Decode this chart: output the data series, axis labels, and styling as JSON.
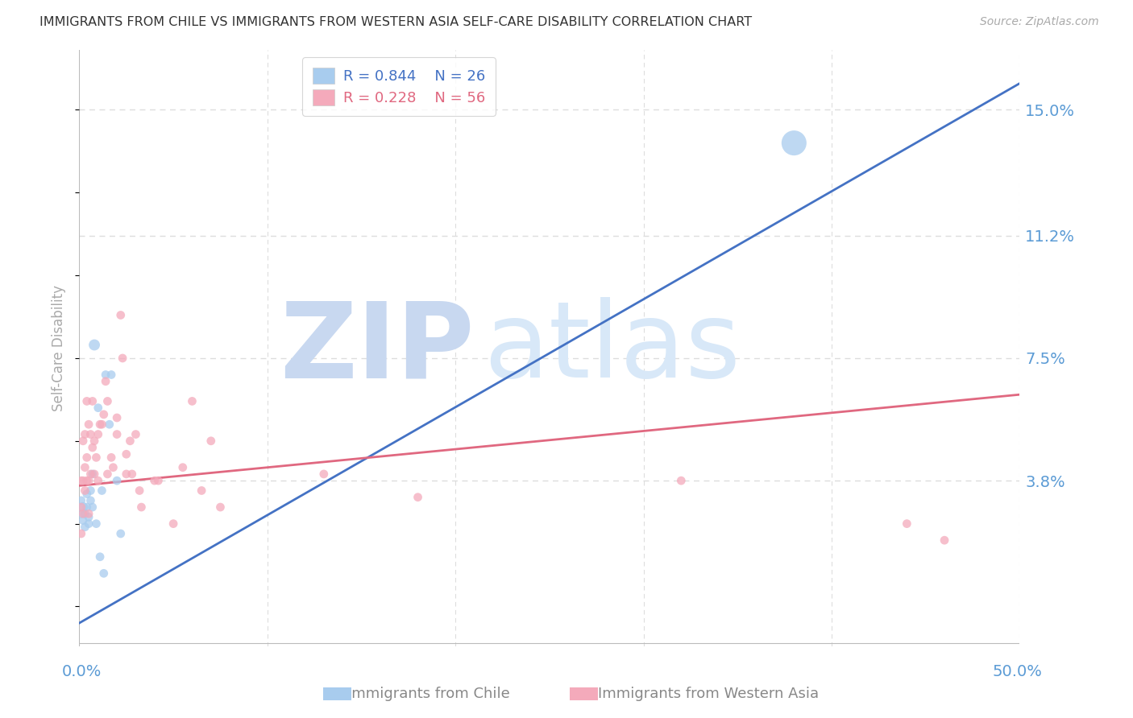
{
  "title": "IMMIGRANTS FROM CHILE VS IMMIGRANTS FROM WESTERN ASIA SELF-CARE DISABILITY CORRELATION CHART",
  "source": "Source: ZipAtlas.com",
  "ylabel": "Self-Care Disability",
  "yticks": [
    0.038,
    0.075,
    0.112,
    0.15
  ],
  "ytick_labels": [
    "3.8%",
    "7.5%",
    "11.2%",
    "15.0%"
  ],
  "xlim": [
    0.0,
    0.5
  ],
  "ylim": [
    -0.012,
    0.168
  ],
  "chile_R": 0.844,
  "chile_N": 26,
  "western_asia_R": 0.228,
  "western_asia_N": 56,
  "chile_dot_color": "#A8CCEE",
  "western_asia_dot_color": "#F4AABB",
  "chile_line_color": "#4472C4",
  "western_asia_line_color": "#E06880",
  "background_color": "#FFFFFF",
  "grid_color": "#DDDDDD",
  "axis_label_color": "#5B9BD5",
  "title_color": "#333333",
  "zip_watermark_color": "#C8D8F0",
  "atlas_watermark_color": "#D8E8F8",
  "chile_scatter_x": [
    0.001,
    0.001,
    0.002,
    0.002,
    0.003,
    0.003,
    0.004,
    0.004,
    0.005,
    0.005,
    0.006,
    0.006,
    0.007,
    0.007,
    0.008,
    0.009,
    0.01,
    0.011,
    0.012,
    0.013,
    0.014,
    0.016,
    0.017,
    0.02,
    0.022,
    0.38
  ],
  "chile_scatter_y": [
    0.028,
    0.032,
    0.026,
    0.03,
    0.024,
    0.028,
    0.03,
    0.034,
    0.025,
    0.027,
    0.032,
    0.035,
    0.03,
    0.04,
    0.079,
    0.025,
    0.06,
    0.015,
    0.035,
    0.01,
    0.07,
    0.055,
    0.07,
    0.038,
    0.022,
    0.14
  ],
  "chile_scatter_sizes": [
    60,
    60,
    60,
    80,
    60,
    60,
    60,
    60,
    60,
    60,
    60,
    60,
    60,
    60,
    100,
    60,
    60,
    60,
    60,
    60,
    60,
    60,
    60,
    60,
    60,
    500
  ],
  "western_asia_scatter_x": [
    0.001,
    0.001,
    0.001,
    0.002,
    0.002,
    0.002,
    0.003,
    0.003,
    0.003,
    0.004,
    0.004,
    0.004,
    0.005,
    0.005,
    0.005,
    0.006,
    0.006,
    0.007,
    0.007,
    0.008,
    0.008,
    0.009,
    0.01,
    0.01,
    0.011,
    0.012,
    0.013,
    0.014,
    0.015,
    0.015,
    0.017,
    0.018,
    0.02,
    0.02,
    0.022,
    0.023,
    0.025,
    0.025,
    0.027,
    0.028,
    0.03,
    0.032,
    0.033,
    0.04,
    0.042,
    0.05,
    0.055,
    0.06,
    0.065,
    0.07,
    0.075,
    0.13,
    0.18,
    0.32,
    0.44,
    0.46
  ],
  "western_asia_scatter_y": [
    0.038,
    0.03,
    0.022,
    0.05,
    0.038,
    0.028,
    0.052,
    0.035,
    0.042,
    0.045,
    0.038,
    0.062,
    0.028,
    0.038,
    0.055,
    0.04,
    0.052,
    0.048,
    0.062,
    0.04,
    0.05,
    0.045,
    0.038,
    0.052,
    0.055,
    0.055,
    0.058,
    0.068,
    0.04,
    0.062,
    0.045,
    0.042,
    0.052,
    0.057,
    0.088,
    0.075,
    0.04,
    0.046,
    0.05,
    0.04,
    0.052,
    0.035,
    0.03,
    0.038,
    0.038,
    0.025,
    0.042,
    0.062,
    0.035,
    0.05,
    0.03,
    0.04,
    0.033,
    0.038,
    0.025,
    0.02
  ],
  "western_asia_scatter_sizes": [
    60,
    60,
    60,
    60,
    60,
    60,
    60,
    60,
    60,
    60,
    60,
    60,
    60,
    60,
    60,
    60,
    60,
    60,
    60,
    60,
    60,
    60,
    60,
    60,
    60,
    60,
    60,
    60,
    60,
    60,
    60,
    60,
    60,
    60,
    60,
    60,
    60,
    60,
    60,
    60,
    60,
    60,
    60,
    60,
    60,
    60,
    60,
    60,
    60,
    60,
    60,
    60,
    60,
    60,
    60,
    60
  ],
  "chile_trend_x": [
    0.0,
    0.5
  ],
  "chile_trend_y": [
    -0.005,
    0.158
  ],
  "western_asia_trend_x": [
    0.0,
    0.5
  ],
  "western_asia_trend_y": [
    0.0365,
    0.064
  ]
}
